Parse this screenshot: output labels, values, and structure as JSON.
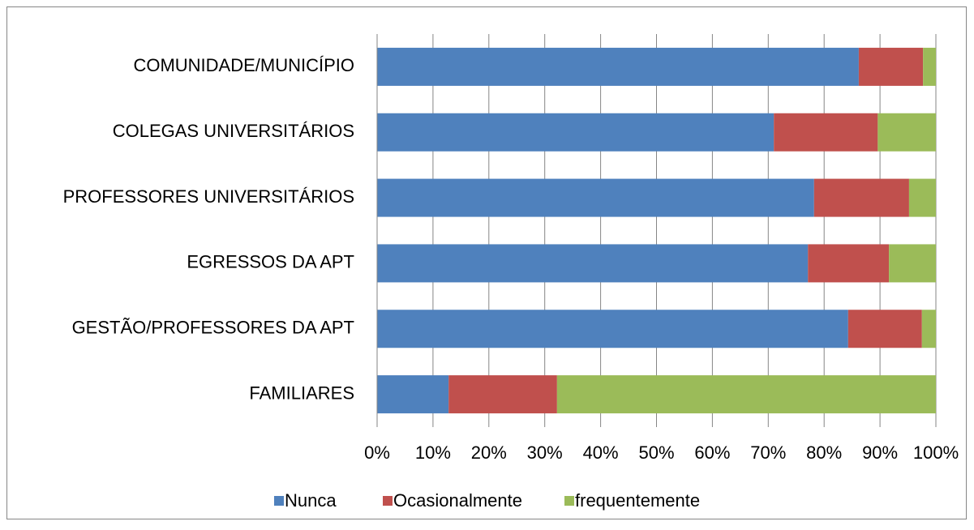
{
  "chart_data": {
    "type": "stacked_barh",
    "categories": [
      "COMUNIDADE/MUNICÍPIO",
      "COLEGAS UNIVERSITÁRIOS",
      "PROFESSORES UNIVERSITÁRIOS",
      "EGRESSOS DA APT",
      "GESTÃO/PROFESSORES DA APT",
      "FAMILIARES"
    ],
    "series": [
      {
        "name": "Nunca",
        "color": "#4f81bd",
        "values": [
          86.2,
          71.0,
          78.2,
          77.1,
          84.3,
          12.8
        ]
      },
      {
        "name": "Ocasionalmente",
        "color": "#c0504d",
        "values": [
          11.5,
          18.6,
          17.0,
          14.5,
          13.2,
          19.4
        ]
      },
      {
        "name": "frequentemente",
        "color": "#9bbb59",
        "values": [
          2.3,
          10.4,
          4.8,
          8.4,
          2.5,
          67.8
        ]
      }
    ],
    "xlim": [
      0,
      100
    ],
    "xticks": [
      {
        "value": 0,
        "label": "0%"
      },
      {
        "value": 10,
        "label": "10%"
      },
      {
        "value": 20,
        "label": "20%"
      },
      {
        "value": 30,
        "label": "30%"
      },
      {
        "value": 40,
        "label": "40%"
      },
      {
        "value": 50,
        "label": "50%"
      },
      {
        "value": 60,
        "label": "60%"
      },
      {
        "value": 70,
        "label": "70%"
      },
      {
        "value": 80,
        "label": "80%"
      },
      {
        "value": 90,
        "label": "90%"
      },
      {
        "value": 100,
        "label": "100%"
      }
    ],
    "grid": true,
    "legend": "bottom"
  }
}
